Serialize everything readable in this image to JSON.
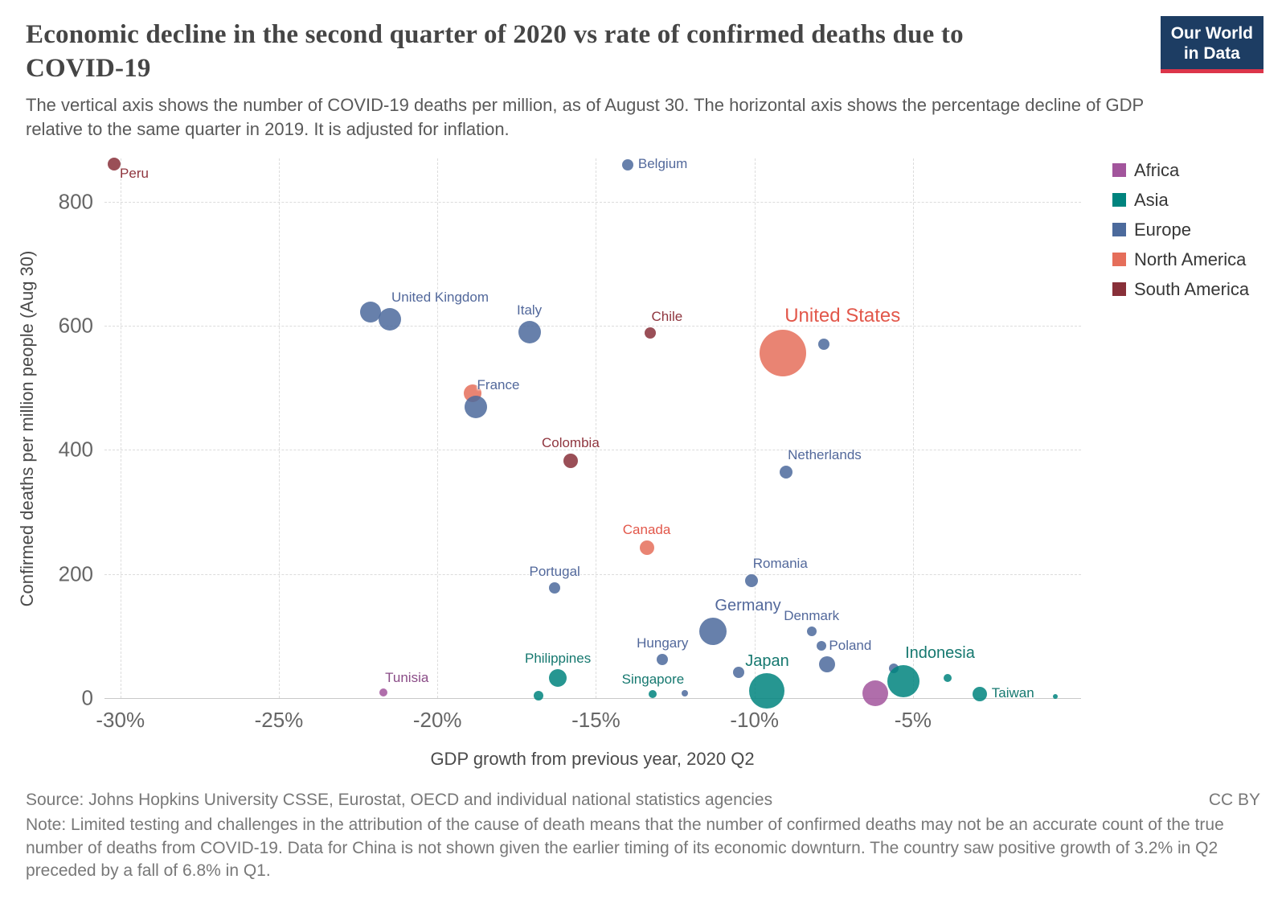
{
  "header": {
    "title": "Economic decline in the second quarter of 2020 vs rate of confirmed deaths due to COVID-19",
    "subtitle": "The vertical axis shows the number of COVID-19 deaths per million, as of August 30. The horizontal axis shows the percentage decline of GDP relative to the same quarter in 2019. It is adjusted for inflation.",
    "logo": {
      "line1": "Our World",
      "line2": "in Data",
      "bg": "#1d3d63",
      "accent": "#dc354a"
    }
  },
  "chart_data": {
    "type": "scatter",
    "xlabel": "GDP growth from previous year, 2020 Q2",
    "ylabel": "Confirmed deaths per million people (Aug 30)",
    "xlim": [
      -30.5,
      0.3
    ],
    "ylim": [
      0,
      870
    ],
    "grid": true,
    "x_ticks": [
      {
        "value": -30,
        "label": "-30%"
      },
      {
        "value": -25,
        "label": "-25%"
      },
      {
        "value": -20,
        "label": "-20%"
      },
      {
        "value": -15,
        "label": "-15%"
      },
      {
        "value": -10,
        "label": "-10%"
      },
      {
        "value": -5,
        "label": "-5%"
      }
    ],
    "y_ticks": [
      {
        "value": 0,
        "label": "0"
      },
      {
        "value": 200,
        "label": "200"
      },
      {
        "value": 400,
        "label": "400"
      },
      {
        "value": 600,
        "label": "600"
      },
      {
        "value": 800,
        "label": "800"
      }
    ],
    "legend": {
      "position": "top-right",
      "items": [
        {
          "label": "Africa",
          "color": "#a2559c"
        },
        {
          "label": "Asia",
          "color": "#00847e"
        },
        {
          "label": "Europe",
          "color": "#4c6a9c"
        },
        {
          "label": "North America",
          "color": "#e56e5a"
        },
        {
          "label": "South America",
          "color": "#883039"
        }
      ]
    },
    "continent_colors": {
      "Africa": "#a2559c",
      "Asia": "#00847e",
      "Europe": "#4c6a9c",
      "North America": "#e56e5a",
      "South America": "#883039"
    },
    "label_colors": {
      "Africa": "#8a4c87",
      "Asia": "#15786f",
      "Europe": "#52689b",
      "North America": "#e2574a",
      "South America": "#8f353e"
    },
    "points": [
      {
        "country": "Peru",
        "continent": "South America",
        "gdp_growth_pct": -30.2,
        "deaths_per_million": 861,
        "r": 8,
        "label_pos": "below-right"
      },
      {
        "country": "Belgium",
        "continent": "Europe",
        "gdp_growth_pct": -14.0,
        "deaths_per_million": 860,
        "r": 7,
        "label_pos": "right"
      },
      {
        "country": "",
        "continent": "Europe",
        "gdp_growth_pct": -22.1,
        "deaths_per_million": 622,
        "r": 13
      },
      {
        "country": "United Kingdom",
        "continent": "Europe",
        "gdp_growth_pct": -21.5,
        "deaths_per_million": 611,
        "r": 14,
        "label_pos": "above-right"
      },
      {
        "country": "Italy",
        "continent": "Europe",
        "gdp_growth_pct": -17.1,
        "deaths_per_million": 590,
        "r": 14,
        "label_pos": "above"
      },
      {
        "country": "Chile",
        "continent": "South America",
        "gdp_growth_pct": -13.3,
        "deaths_per_million": 589,
        "r": 7,
        "label_pos": "above-right"
      },
      {
        "country": "",
        "continent": "Europe",
        "gdp_growth_pct": -7.8,
        "deaths_per_million": 570,
        "r": 7
      },
      {
        "country": "United States",
        "continent": "North America",
        "gdp_growth_pct": -9.1,
        "deaths_per_million": 556,
        "r": 29,
        "label_pos": "above-right",
        "label_size": 24
      },
      {
        "country": "",
        "continent": "North America",
        "gdp_growth_pct": -18.9,
        "deaths_per_million": 492,
        "r": 11
      },
      {
        "country": "France",
        "continent": "Europe",
        "gdp_growth_pct": -18.8,
        "deaths_per_million": 469,
        "r": 14,
        "label_pos": "above-right"
      },
      {
        "country": "Colombia",
        "continent": "South America",
        "gdp_growth_pct": -15.8,
        "deaths_per_million": 383,
        "r": 9,
        "label_pos": "above"
      },
      {
        "country": "Netherlands",
        "continent": "Europe",
        "gdp_growth_pct": -9.0,
        "deaths_per_million": 364,
        "r": 8,
        "label_pos": "above-right"
      },
      {
        "country": "Canada",
        "continent": "North America",
        "gdp_growth_pct": -13.4,
        "deaths_per_million": 243,
        "r": 9,
        "label_pos": "above"
      },
      {
        "country": "Romania",
        "continent": "Europe",
        "gdp_growth_pct": -10.1,
        "deaths_per_million": 189,
        "r": 8,
        "label_pos": "above-right"
      },
      {
        "country": "Portugal",
        "continent": "Europe",
        "gdp_growth_pct": -16.3,
        "deaths_per_million": 177,
        "r": 7,
        "label_pos": "above"
      },
      {
        "country": "Germany",
        "continent": "Europe",
        "gdp_growth_pct": -11.3,
        "deaths_per_million": 108,
        "r": 17,
        "label_pos": "above-right",
        "label_size": 20
      },
      {
        "country": "Denmark",
        "continent": "Europe",
        "gdp_growth_pct": -8.2,
        "deaths_per_million": 107,
        "r": 6,
        "label_pos": "above"
      },
      {
        "country": "",
        "continent": "Europe",
        "gdp_growth_pct": -7.9,
        "deaths_per_million": 84,
        "r": 6
      },
      {
        "country": "Poland",
        "continent": "Europe",
        "gdp_growth_pct": -7.7,
        "deaths_per_million": 54,
        "r": 10,
        "label_pos": "above-right"
      },
      {
        "country": "Hungary",
        "continent": "Europe",
        "gdp_growth_pct": -12.9,
        "deaths_per_million": 62,
        "r": 7,
        "label_pos": "above"
      },
      {
        "country": "Philippines",
        "continent": "Asia",
        "gdp_growth_pct": -16.2,
        "deaths_per_million": 33,
        "r": 11,
        "label_pos": "above"
      },
      {
        "country": "",
        "continent": "Asia",
        "gdp_growth_pct": -16.8,
        "deaths_per_million": 4,
        "r": 6
      },
      {
        "country": "Singapore",
        "continent": "Asia",
        "gdp_growth_pct": -13.2,
        "deaths_per_million": 6,
        "r": 5,
        "label_pos": "above"
      },
      {
        "country": "",
        "continent": "Europe",
        "gdp_growth_pct": -12.2,
        "deaths_per_million": 8,
        "r": 4
      },
      {
        "country": "",
        "continent": "Europe",
        "gdp_growth_pct": -10.5,
        "deaths_per_million": 41,
        "r": 7
      },
      {
        "country": "Japan",
        "continent": "Asia",
        "gdp_growth_pct": -9.6,
        "deaths_per_million": 12,
        "r": 22,
        "label_pos": "above",
        "label_size": 20
      },
      {
        "country": "",
        "continent": "Africa",
        "gdp_growth_pct": -6.2,
        "deaths_per_million": 8,
        "r": 16
      },
      {
        "country": "",
        "continent": "Europe",
        "gdp_growth_pct": -5.6,
        "deaths_per_million": 48,
        "r": 6
      },
      {
        "country": "Indonesia",
        "continent": "Asia",
        "gdp_growth_pct": -5.3,
        "deaths_per_million": 27,
        "r": 20,
        "label_pos": "above-right",
        "label_size": 20
      },
      {
        "country": "",
        "continent": "Asia",
        "gdp_growth_pct": -3.9,
        "deaths_per_million": 33,
        "r": 5
      },
      {
        "country": "Tunisia",
        "continent": "Africa",
        "gdp_growth_pct": -21.7,
        "deaths_per_million": 9,
        "r": 5,
        "label_pos": "above-right"
      },
      {
        "country": "Taiwan",
        "continent": "Asia",
        "gdp_growth_pct": -2.9,
        "deaths_per_million": 6,
        "r": 9,
        "label_pos": "right"
      },
      {
        "country": "",
        "continent": "Asia",
        "gdp_growth_pct": -0.5,
        "deaths_per_million": 2,
        "r": 3
      }
    ]
  },
  "footer": {
    "source": "Source: Johns Hopkins University CSSE, Eurostat, OECD and individual national statistics agencies",
    "license": "CC BY",
    "note": "Note: Limited testing and challenges in the attribution of the cause of death means that the number of confirmed deaths may not be an accurate count of the true number of deaths from COVID-19. Data for China is not shown given the earlier timing of its economic downturn. The country saw positive growth of 3.2% in Q2 preceded by a fall of 6.8% in Q1."
  }
}
